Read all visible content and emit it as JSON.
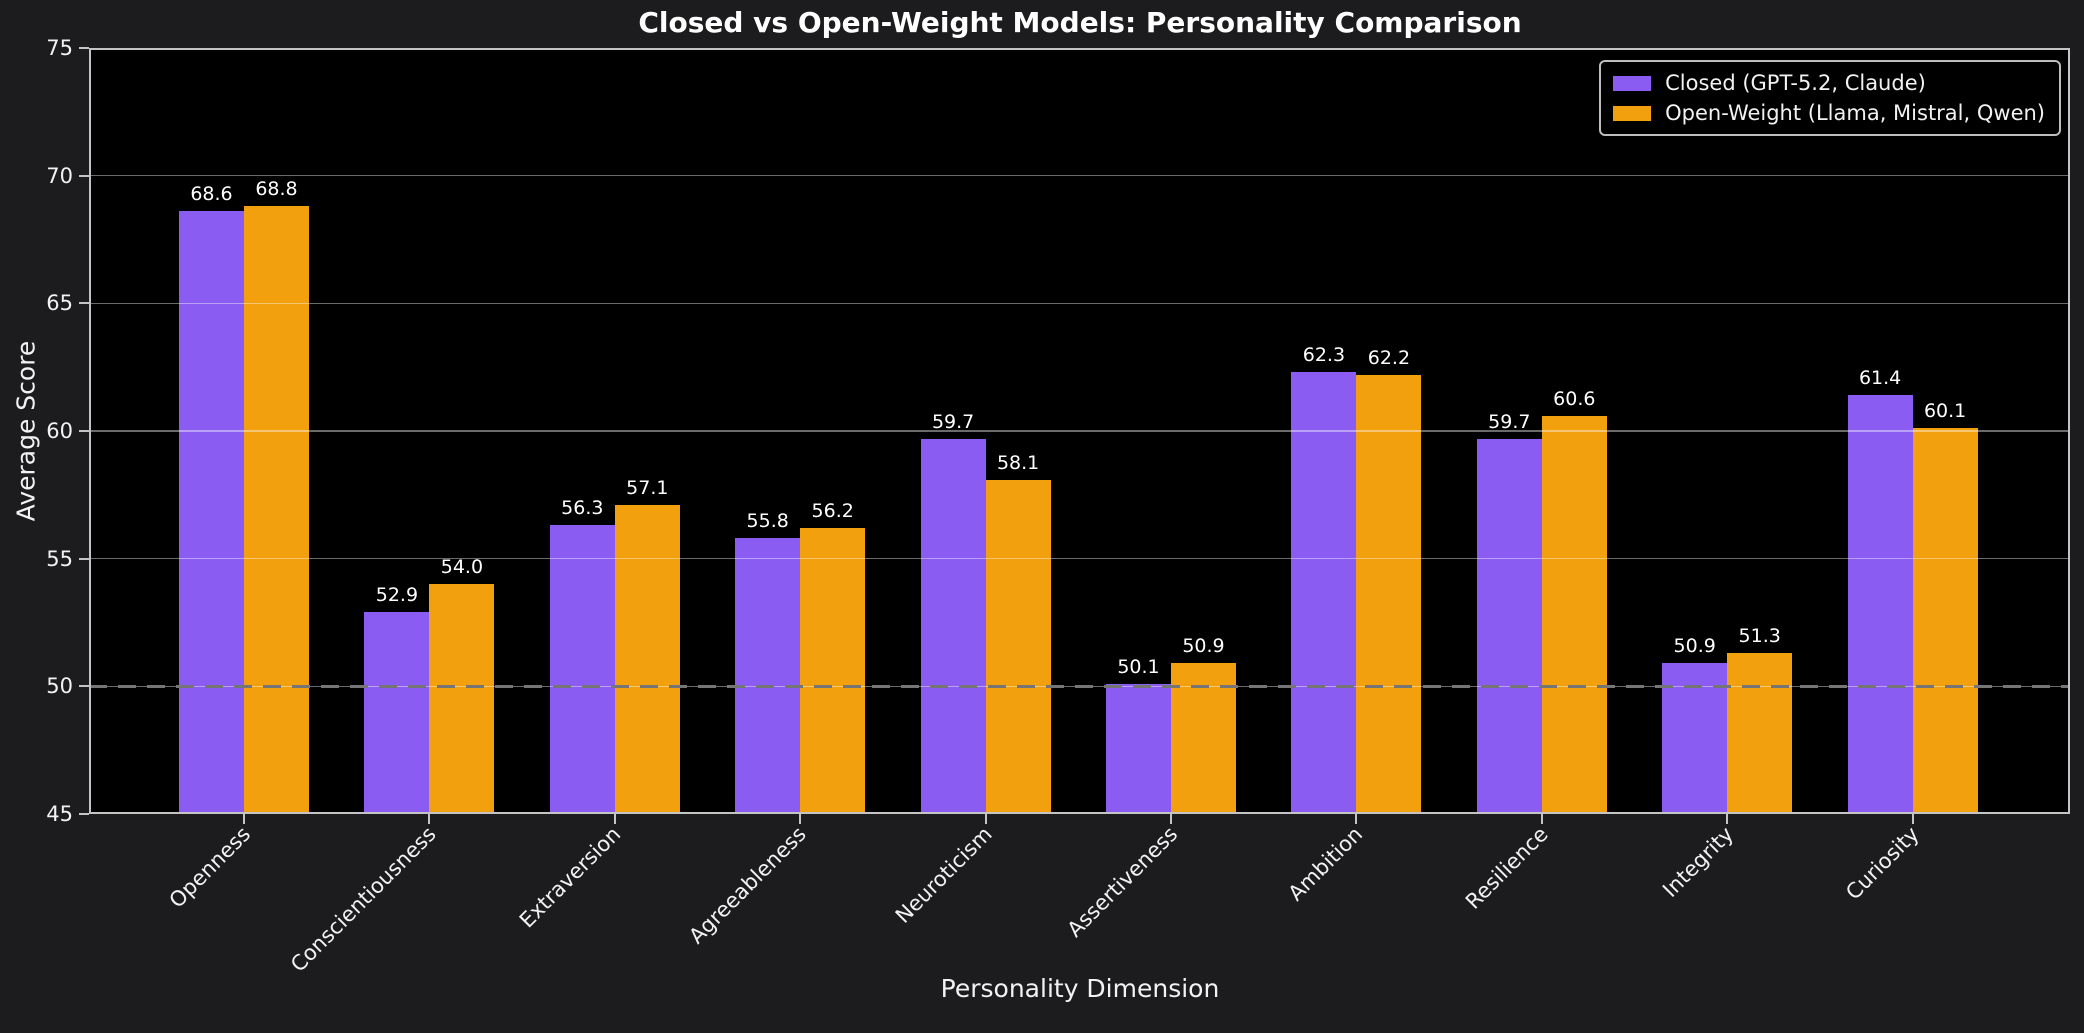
{
  "chart_data": {
    "type": "bar",
    "title": "Closed vs Open-Weight Models: Personality Comparison",
    "xlabel": "Personality Dimension",
    "ylabel": "Average Score",
    "categories": [
      "Openness",
      "Conscientiousness",
      "Extraversion",
      "Agreeableness",
      "Neuroticism",
      "Assertiveness",
      "Ambition",
      "Resilience",
      "Integrity",
      "Curiosity"
    ],
    "series": [
      {
        "name": "Closed (GPT-5.2, Claude)",
        "color": "#8b5cf1",
        "values": [
          68.6,
          52.9,
          56.3,
          55.8,
          59.7,
          50.1,
          62.3,
          59.7,
          50.9,
          61.4
        ]
      },
      {
        "name": "Open-Weight (Llama, Mistral, Qwen)",
        "color": "#f2a00e",
        "values": [
          68.8,
          54.0,
          57.1,
          56.2,
          58.1,
          50.9,
          62.2,
          60.6,
          51.3,
          60.1
        ]
      }
    ],
    "ylim": [
      45,
      75
    ],
    "yticks": [
      45,
      50,
      55,
      60,
      65,
      70,
      75
    ],
    "grid": true,
    "grid_color": "rgba(255,255,255,0.42)",
    "baseline": {
      "value": 50,
      "style": "dashed",
      "color": "#757575"
    },
    "legend_position": "upper right",
    "value_labels": true,
    "plot_background": "#000000",
    "figure_background": "#1c1c1e",
    "text_color": "#f2f2f2"
  }
}
